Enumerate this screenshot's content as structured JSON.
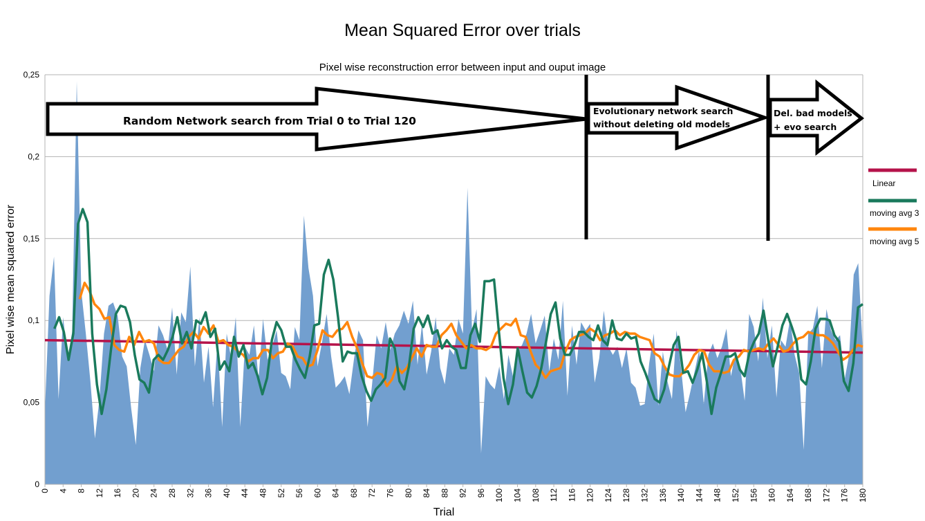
{
  "chart_data": {
    "type": "area",
    "title": "Mean Squared Error over trials",
    "subtitle": "Pixel wise reconstruction error between input and ouput image",
    "xlabel": "Trial",
    "ylabel": "Pixel wise mean squared error",
    "xlim": [
      0,
      180
    ],
    "ylim": [
      0,
      0.25
    ],
    "xticks": [
      "0",
      "4",
      "8",
      "12",
      "16",
      "20",
      "24",
      "28",
      "32",
      "36",
      "40",
      "44",
      "48",
      "52",
      "56",
      "60",
      "64",
      "68",
      "72",
      "76",
      "80",
      "84",
      "88",
      "92",
      "96",
      "100",
      "104",
      "108",
      "112",
      "116",
      "120",
      "124",
      "128",
      "132",
      "136",
      "140",
      "144",
      "148",
      "152",
      "156",
      "160",
      "164",
      "168",
      "172",
      "176",
      "180"
    ],
    "yticks": [
      "0",
      "0,05",
      "0,1",
      "0,15",
      "0,2",
      "0,25"
    ],
    "grid": "horizontal",
    "legend_position": "right",
    "colors": {
      "area": "#729fcf",
      "linear": "#b5134a",
      "ma3": "#1a7a5c",
      "ma5": "#ff860d"
    },
    "series": [
      {
        "name": "",
        "style": "area",
        "values": [
          0.045,
          0.115,
          0.139,
          0.052,
          0.102,
          0.077,
          0.093,
          0.246,
          0.118,
          0.092,
          0.063,
          0.028,
          0.052,
          0.092,
          0.109,
          0.111,
          0.103,
          0.078,
          0.072,
          0.046,
          0.024,
          0.071,
          0.088,
          0.079,
          0.069,
          0.097,
          0.091,
          0.082,
          0.108,
          0.067,
          0.105,
          0.099,
          0.133,
          0.072,
          0.102,
          0.062,
          0.084,
          0.047,
          0.088,
          0.035,
          0.092,
          0.077,
          0.102,
          0.035,
          0.084,
          0.079,
          0.097,
          0.064,
          0.101,
          0.076,
          0.084,
          0.094,
          0.068,
          0.066,
          0.058,
          0.096,
          0.088,
          0.164,
          0.132,
          0.115,
          0.072,
          0.087,
          0.104,
          0.078,
          0.059,
          0.062,
          0.066,
          0.055,
          0.076,
          0.094,
          0.088,
          0.035,
          0.061,
          0.091,
          0.083,
          0.099,
          0.082,
          0.092,
          0.097,
          0.106,
          0.098,
          0.112,
          0.073,
          0.098,
          0.067,
          0.081,
          0.102,
          0.071,
          0.061,
          0.083,
          0.079,
          0.101,
          0.092,
          0.181,
          0.094,
          0.107,
          0.019,
          0.066,
          0.061,
          0.058,
          0.072,
          0.052,
          0.079,
          0.066,
          0.081,
          0.085,
          0.092,
          0.104,
          0.086,
          0.094,
          0.103,
          0.069,
          0.089,
          0.076,
          0.112,
          0.054,
          0.097,
          0.073,
          0.099,
          0.094,
          0.098,
          0.062,
          0.077,
          0.106,
          0.084,
          0.079,
          0.084,
          0.071,
          0.083,
          0.062,
          0.059,
          0.048,
          0.049,
          0.074,
          0.092,
          0.048,
          0.081,
          0.063,
          0.052,
          0.094,
          0.071,
          0.044,
          0.056,
          0.069,
          0.082,
          0.049,
          0.079,
          0.086,
          0.077,
          0.084,
          0.095,
          0.066,
          0.081,
          0.072,
          0.051,
          0.104,
          0.096,
          0.075,
          0.114,
          0.077,
          0.097,
          0.053,
          0.088,
          0.084,
          0.101,
          0.079,
          0.068,
          0.021,
          0.092,
          0.095,
          0.109,
          0.071,
          0.107,
          0.094,
          0.088,
          0.091,
          0.064,
          0.079,
          0.128,
          0.135,
          0.082
        ]
      },
      {
        "name": "Linear",
        "style": "line",
        "values": [
          0.088,
          0.0804
        ]
      },
      {
        "name": "moving avg 3",
        "style": "line",
        "values": [
          null,
          null,
          0.095,
          0.102,
          0.093,
          0.076,
          0.092,
          0.159,
          0.168,
          0.16,
          0.092,
          0.061,
          0.043,
          0.058,
          0.083,
          0.104,
          0.109,
          0.108,
          0.099,
          0.079,
          0.064,
          0.062,
          0.056,
          0.076,
          0.079,
          0.076,
          0.082,
          0.09,
          0.102,
          0.086,
          0.093,
          0.083,
          0.1,
          0.098,
          0.105,
          0.09,
          0.095,
          0.07,
          0.075,
          0.069,
          0.09,
          0.078,
          0.085,
          0.071,
          0.074,
          0.066,
          0.055,
          0.065,
          0.088,
          0.099,
          0.094,
          0.084,
          0.084,
          0.076,
          0.07,
          0.065,
          0.078,
          0.097,
          0.098,
          0.128,
          0.137,
          0.125,
          0.102,
          0.075,
          0.081,
          0.08,
          0.08,
          0.066,
          0.057,
          0.051,
          0.058,
          0.061,
          0.065,
          0.089,
          0.083,
          0.063,
          0.058,
          0.072,
          0.095,
          0.102,
          0.096,
          0.103,
          0.092,
          0.094,
          0.083,
          0.088,
          0.084,
          0.082,
          0.071,
          0.071,
          0.091,
          0.098,
          0.087,
          0.124,
          0.124,
          0.125,
          0.094,
          0.065,
          0.049,
          0.061,
          0.083,
          0.069,
          0.056,
          0.053,
          0.06,
          0.071,
          0.087,
          0.104,
          0.111,
          0.089,
          0.079,
          0.079,
          0.085,
          0.093,
          0.093,
          0.09,
          0.088,
          0.097,
          0.088,
          0.085,
          0.1,
          0.089,
          0.088,
          0.092,
          0.089,
          0.09,
          0.075,
          0.068,
          0.06,
          0.052,
          0.05,
          0.058,
          0.072,
          0.085,
          0.09,
          0.068,
          0.069,
          0.062,
          0.07,
          0.08,
          0.063,
          0.043,
          0.059,
          0.068,
          0.078,
          0.078,
          0.08,
          0.07,
          0.066,
          0.08,
          0.087,
          0.092,
          0.106,
          0.088,
          0.072,
          0.084,
          0.097,
          0.104,
          0.096,
          0.087,
          0.064,
          0.061,
          0.075,
          0.095,
          0.101,
          0.101,
          0.1,
          0.091,
          0.087,
          0.063,
          0.057,
          0.074,
          0.108,
          0.11
        ]
      },
      {
        "name": "moving avg 5",
        "style": "line",
        "values": [
          null,
          null,
          null,
          null,
          null,
          null,
          null,
          0.113,
          0.123,
          0.118,
          0.11,
          0.107,
          0.101,
          0.102,
          0.085,
          0.082,
          0.081,
          0.09,
          0.085,
          0.093,
          0.087,
          0.088,
          0.086,
          0.076,
          0.074,
          0.074,
          0.078,
          0.082,
          0.084,
          0.09,
          0.093,
          0.089,
          0.096,
          0.092,
          0.097,
          0.087,
          0.088,
          0.085,
          0.084,
          0.081,
          0.079,
          0.075,
          0.077,
          0.077,
          0.082,
          0.082,
          0.077,
          0.08,
          0.081,
          0.086,
          0.084,
          0.078,
          0.077,
          0.072,
          0.073,
          0.082,
          0.094,
          0.091,
          0.09,
          0.094,
          0.095,
          0.099,
          0.09,
          0.083,
          0.074,
          0.066,
          0.065,
          0.068,
          0.067,
          0.06,
          0.064,
          0.072,
          0.068,
          0.071,
          0.077,
          0.083,
          0.078,
          0.085,
          0.084,
          0.084,
          0.091,
          0.094,
          0.098,
          0.091,
          0.087,
          0.083,
          0.085,
          0.083,
          0.083,
          0.082,
          0.084,
          0.092,
          0.095,
          0.098,
          0.097,
          0.101,
          0.091,
          0.09,
          0.081,
          0.073,
          0.07,
          0.065,
          0.069,
          0.07,
          0.071,
          0.081,
          0.088,
          0.09,
          0.091,
          0.092,
          0.095,
          0.093,
          0.088,
          0.091,
          0.092,
          0.094,
          0.091,
          0.093,
          0.092,
          0.092,
          0.09,
          0.089,
          0.088,
          0.08,
          0.078,
          0.072,
          0.067,
          0.066,
          0.066,
          0.069,
          0.073,
          0.079,
          0.082,
          0.081,
          0.073,
          0.069,
          0.069,
          0.068,
          0.069,
          0.076,
          0.078,
          0.082,
          0.081,
          0.082,
          0.083,
          0.082,
          0.086,
          0.089,
          0.085,
          0.081,
          0.082,
          0.086,
          0.089,
          0.09,
          0.093,
          0.092,
          0.091,
          0.091,
          0.089,
          0.086,
          0.081,
          0.076,
          0.078,
          0.082,
          0.085,
          0.084
        ]
      }
    ],
    "annotations": [
      {
        "text": "Random Network search from Trial 0 to Trial 120"
      },
      {
        "lines": [
          "Evolutionary network search",
          "without deleting old models"
        ]
      },
      {
        "lines": [
          "Del. bad models",
          "+ evo search"
        ]
      }
    ]
  }
}
